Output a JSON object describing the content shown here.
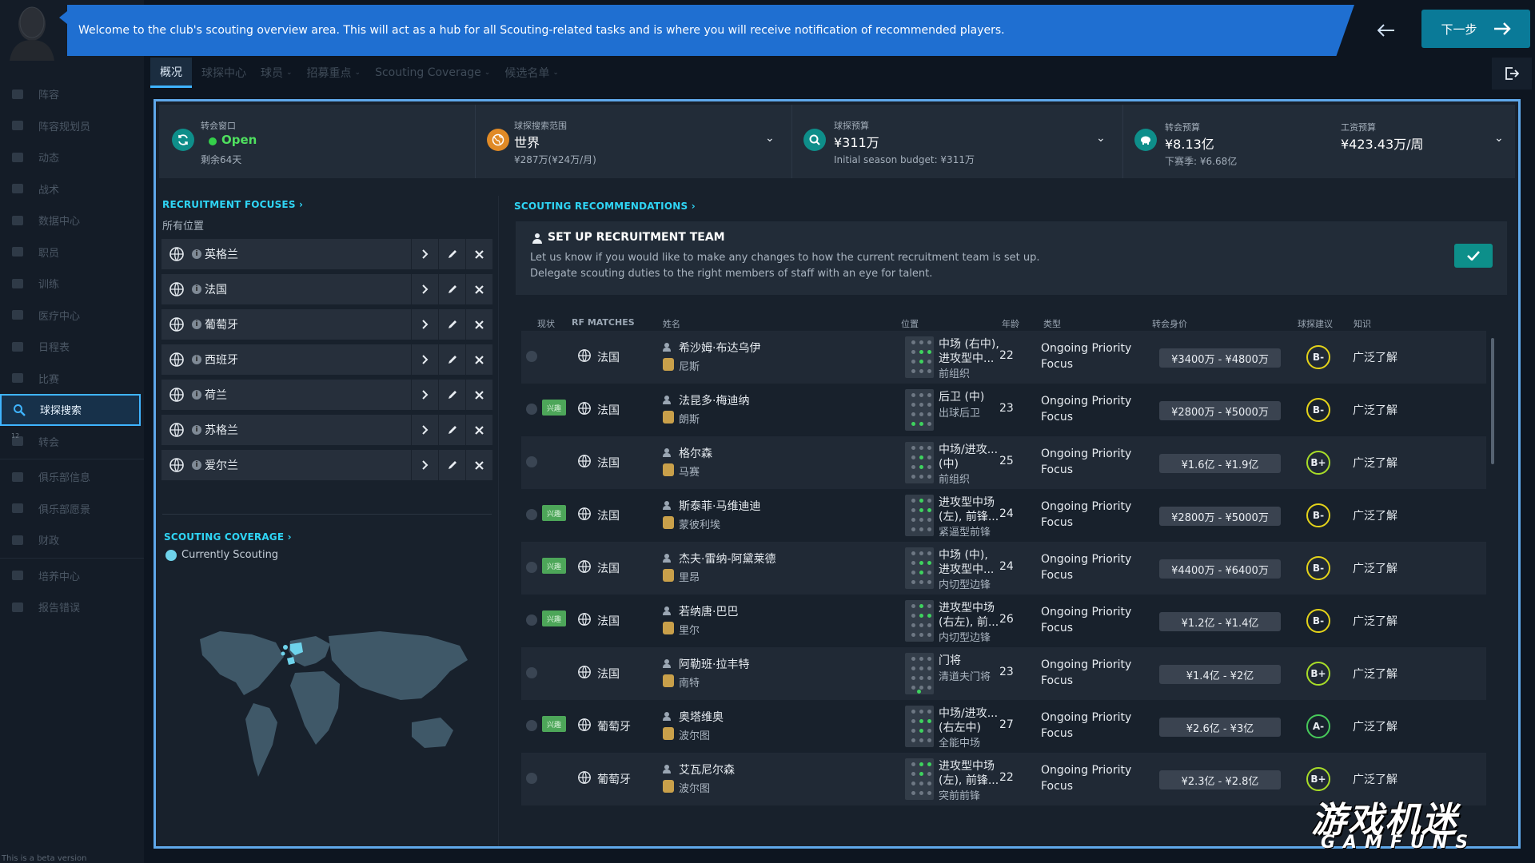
{
  "sidebar": {
    "items": [
      "阵容",
      "阵容规划员",
      "动态",
      "战术",
      "数据中心",
      "职员",
      "训练",
      "医疗中心",
      "日程表",
      "比赛",
      "球探搜索",
      "转会",
      "俱乐部信息",
      "俱乐部愿景",
      "财政",
      "培养中心",
      "报告错误"
    ],
    "badge": "12",
    "beta": "This is a beta version"
  },
  "banner": {
    "text": "Welcome to the club's scouting overview area. This will act as a hub for all Scouting-related tasks and is where you will receive notification of recommended players.",
    "next_label": "下一步"
  },
  "tabs": [
    {
      "label": "概况"
    },
    {
      "label": "球探中心"
    },
    {
      "label": "球员"
    },
    {
      "label": "招募重点"
    },
    {
      "label": "Scouting Coverage"
    },
    {
      "label": "候选名单"
    }
  ],
  "topbar": {
    "window": {
      "label": "转会窗口",
      "status": "Open",
      "remaining": "剩余64天"
    },
    "range": {
      "label": "球探搜索范围",
      "value": "世界",
      "cost": "¥287万(¥24万/月)"
    },
    "budget": {
      "label": "球探预算",
      "value": "¥311万",
      "initial": "Initial season budget: ¥311万"
    },
    "transfer": {
      "label": "转会预算",
      "value": "¥8.13亿",
      "next": "下赛季: ¥6.68亿"
    },
    "wage": {
      "label": "工资预算",
      "value": "¥423.43万/周"
    }
  },
  "focuses": {
    "title": "RECRUITMENT FOCUSES",
    "subtitle": "所有位置",
    "items": [
      "英格兰",
      "法国",
      "葡萄牙",
      "西班牙",
      "荷兰",
      "苏格兰",
      "爱尔兰"
    ]
  },
  "coverage": {
    "title": "SCOUTING COVERAGE",
    "legend": "Currently Scouting"
  },
  "recs": {
    "title": "SCOUTING RECOMMENDATIONS",
    "panel_title": "SET UP RECRUITMENT TEAM",
    "panel_line1": "Let us know if you would like to make any changes to how the current recruitment team is set up.",
    "panel_line2": "Delegate scouting duties to the right members of staff with an eye for talent.",
    "headers": {
      "status": "现状",
      "rf": "RF MATCHES",
      "name": "姓名",
      "pos": "位置",
      "age": "年龄",
      "type": "类型",
      "value": "转会身价",
      "advice": "球探建议",
      "know": "知识"
    },
    "rows": [
      {
        "interest": "",
        "country": "法国",
        "name": "希沙姆·布达乌伊",
        "club": "尼斯",
        "pos1": "中场 (右中),",
        "pos2": "进攻型中...",
        "role": "前组织",
        "age": "22",
        "type1": "Ongoing Priority",
        "type2": "Focus",
        "value": "¥3400万 - ¥4800万",
        "grade": "B-",
        "know": "广泛了解"
      },
      {
        "interest": "兴趣",
        "country": "法国",
        "name": "法昆多·梅迪纳",
        "club": "朗斯",
        "pos1": "后卫 (中)",
        "pos2": "",
        "role": "出球后卫",
        "age": "23",
        "type1": "Ongoing Priority",
        "type2": "Focus",
        "value": "¥2800万 - ¥5000万",
        "grade": "B-",
        "know": "广泛了解"
      },
      {
        "interest": "",
        "country": "法国",
        "name": "格尔森",
        "club": "马赛",
        "pos1": "中场/进攻...",
        "pos2": "(中)",
        "role": "前组织",
        "age": "25",
        "type1": "Ongoing Priority",
        "type2": "Focus",
        "value": "¥1.6亿 - ¥1.9亿",
        "grade": "B+",
        "know": "广泛了解"
      },
      {
        "interest": "兴趣",
        "country": "法国",
        "name": "斯泰菲·马维迪迪",
        "club": "蒙彼利埃",
        "pos1": "进攻型中场",
        "pos2": "(左), 前锋...",
        "role": "紧逼型前锋",
        "age": "24",
        "type1": "Ongoing Priority",
        "type2": "Focus",
        "value": "¥2800万 - ¥5000万",
        "grade": "B-",
        "know": "广泛了解"
      },
      {
        "interest": "兴趣",
        "country": "法国",
        "name": "杰夫·雷纳-阿黛莱德",
        "club": "里昂",
        "pos1": "中场 (中),",
        "pos2": "进攻型中...",
        "role": "内切型边锋",
        "age": "24",
        "type1": "Ongoing Priority",
        "type2": "Focus",
        "value": "¥4400万 - ¥6400万",
        "grade": "B-",
        "know": "广泛了解"
      },
      {
        "interest": "兴趣",
        "country": "法国",
        "name": "若纳唐·巴巴",
        "club": "里尔",
        "pos1": "进攻型中场",
        "pos2": "(右左), 前...",
        "role": "内切型边锋",
        "age": "26",
        "type1": "Ongoing Priority",
        "type2": "Focus",
        "value": "¥1.2亿 - ¥1.4亿",
        "grade": "B-",
        "know": "广泛了解"
      },
      {
        "interest": "",
        "country": "法国",
        "name": "阿勒班·拉丰特",
        "club": "南特",
        "pos1": "门将",
        "pos2": "",
        "role": "清道夫门将",
        "age": "23",
        "type1": "Ongoing Priority",
        "type2": "Focus",
        "value": "¥1.4亿 - ¥2亿",
        "grade": "B+",
        "know": "广泛了解"
      },
      {
        "interest": "兴趣",
        "country": "葡萄牙",
        "name": "奥塔维奥",
        "club": "波尔图",
        "pos1": "中场/进攻...",
        "pos2": "(右左中)",
        "role": "全能中场",
        "age": "27",
        "type1": "Ongoing Priority",
        "type2": "Focus",
        "value": "¥2.6亿 - ¥3亿",
        "grade": "A-",
        "know": "广泛了解"
      },
      {
        "interest": "",
        "country": "葡萄牙",
        "name": "艾瓦尼尔森",
        "club": "波尔图",
        "pos1": "进攻型中场",
        "pos2": "(左), 前锋...",
        "role": "突前前锋",
        "age": "22",
        "type1": "Ongoing Priority",
        "type2": "Focus",
        "value": "¥2.3亿 - ¥2.8亿",
        "grade": "B+",
        "know": "广泛了解"
      }
    ]
  },
  "watermark": {
    "text": "游戏机迷",
    "sub": "GAMFUNS"
  }
}
